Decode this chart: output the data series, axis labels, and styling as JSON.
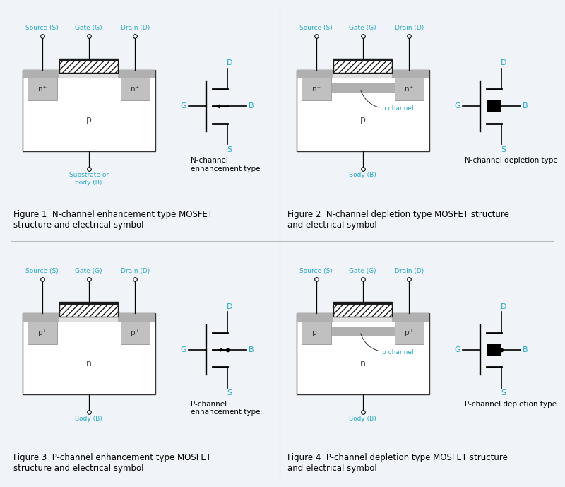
{
  "fig_bg": "#f0f4f8",
  "colors": {
    "white": "#ffffff",
    "body_white": "#ffffff",
    "oxide_gray": "#b0b0b0",
    "diffusion_gray": "#c0c0c0",
    "diffusion_dark": "#a0a0a0",
    "body_region": "#e8e8e8",
    "gate_black": "#1a1a1a",
    "dark_line": "#333333",
    "cyan": "#29a8c5",
    "text_dark": "#444444",
    "channel_gray": "#909090",
    "hatch_bg": "#ffffff",
    "fig1_body": "#f5f5f5",
    "fig3_body": "#eeeeee"
  },
  "figure_captions": [
    "Figure 1  N-channel enhancement type MOSFET\nstructure and electrical symbol",
    "Figure 2  N-channel depletion type MOSFET structure\nand electrical symbol",
    "Figure 3  P-channel enhancement type MOSFET\nstructure and electrical symbol",
    "Figure 4  P-channel depletion type MOSFET structure\nand electrical symbol"
  ],
  "symbol_labels": [
    "N-channel\nenhancement type",
    "N-channel depletion type",
    "P-channel\nenhancement type",
    "P-channel depletion type"
  ]
}
